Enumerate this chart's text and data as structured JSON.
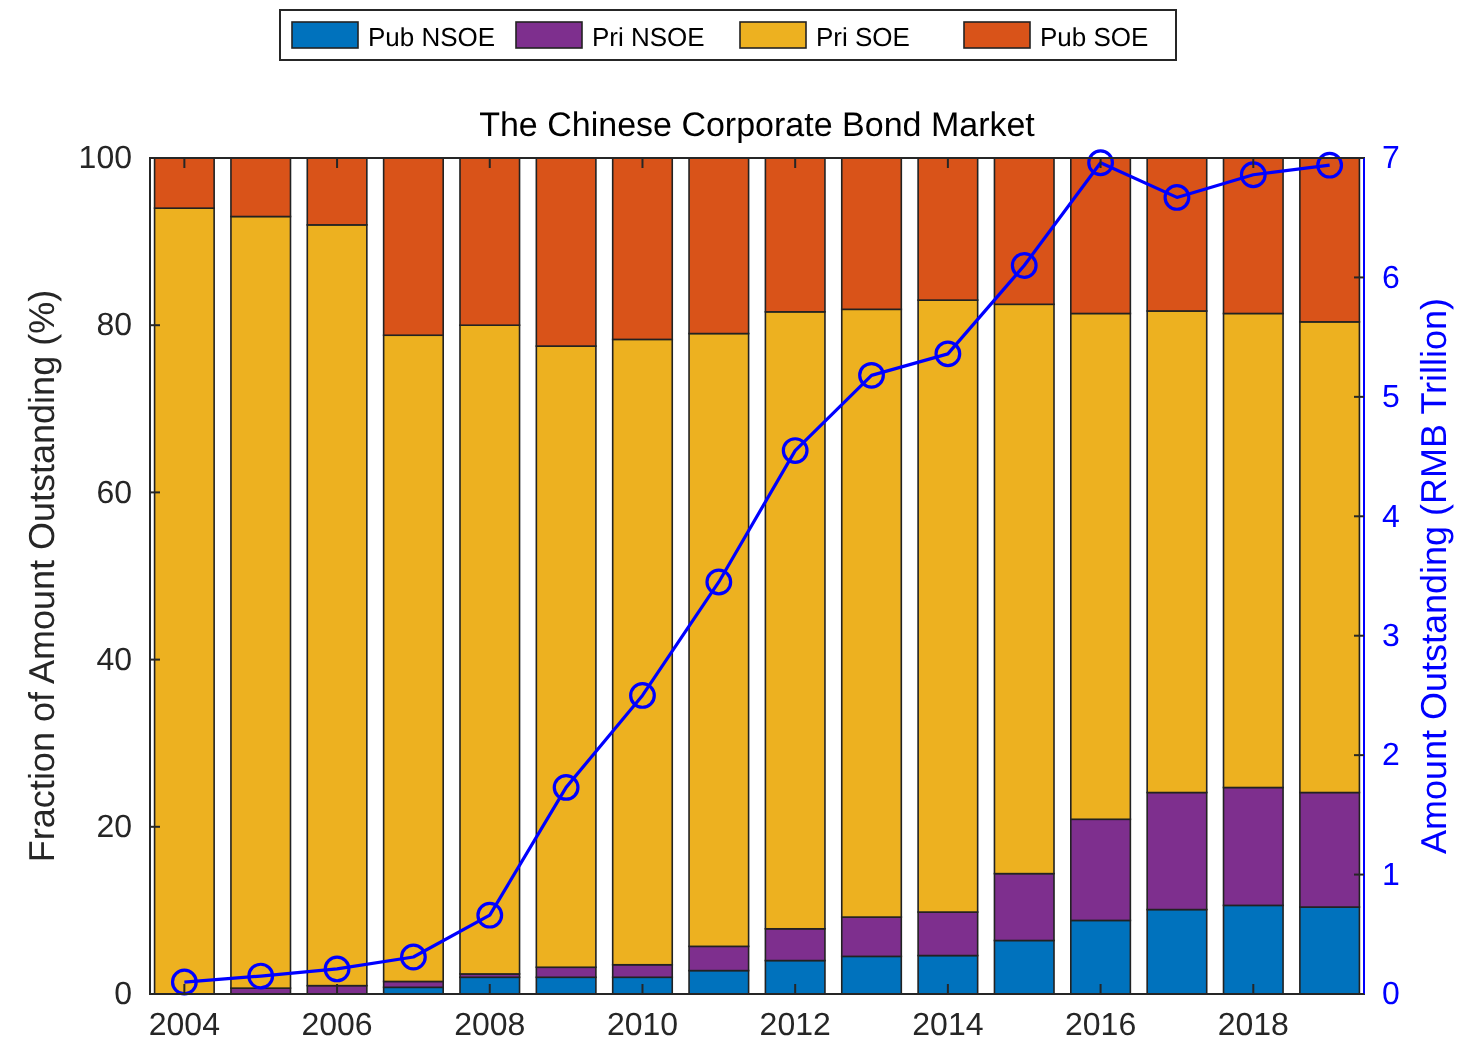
{
  "chart_data": {
    "type": "bar",
    "title": "The Chinese Corporate Bond Market",
    "xlabel": null,
    "ylabel": "Fraction of Amount Outstanding (%)",
    "y2label": "Amount Outstanding (RMB Trillion)",
    "stacked": true,
    "legend": "top",
    "grid": false,
    "x": [
      2004,
      2005,
      2006,
      2007,
      2008,
      2009,
      2010,
      2011,
      2012,
      2013,
      2014,
      2015,
      2016,
      2017,
      2018,
      2019
    ],
    "xlim": [
      2003.55,
      2019.45
    ],
    "xticks": [
      2004,
      2006,
      2008,
      2010,
      2012,
      2014,
      2016,
      2018
    ],
    "ylim": [
      0,
      100
    ],
    "yticks": [
      0,
      20,
      40,
      60,
      80,
      100
    ],
    "y2lim": [
      0,
      7
    ],
    "y2ticks": [
      0,
      1,
      2,
      3,
      4,
      5,
      6,
      7
    ],
    "series": [
      {
        "name": "Pub NSOE",
        "color": "#0072bd",
        "values": [
          0,
          0,
          0,
          0.8,
          2.0,
          2.0,
          2.0,
          2.8,
          4.0,
          4.5,
          4.6,
          6.4,
          8.8,
          10.1,
          10.6,
          10.4
        ]
      },
      {
        "name": "Pri NSOE",
        "color": "#7e2f8e",
        "values": [
          0,
          0.7,
          1.0,
          0.7,
          0.4,
          1.2,
          1.5,
          2.9,
          3.8,
          4.7,
          5.2,
          8.0,
          12.1,
          14.0,
          14.1,
          13.7
        ]
      },
      {
        "name": "Pri SOE",
        "color": "#edb120",
        "values": [
          94,
          92.3,
          91,
          77.3,
          77.6,
          74.3,
          74.8,
          73.3,
          73.8,
          72.7,
          73.2,
          68.1,
          60.5,
          57.6,
          56.7,
          56.3
        ]
      },
      {
        "name": "Pub SOE",
        "color": "#d95319",
        "values": [
          6,
          7,
          8,
          21.2,
          20,
          22.5,
          21.7,
          21,
          18.4,
          18.1,
          17,
          17.5,
          18.6,
          18.3,
          18.6,
          19.6
        ]
      },
      {
        "type": "line",
        "axis": "y2",
        "color": "#0000ff",
        "marker": "circle",
        "line_style": "solid",
        "values": [
          0.1,
          0.15,
          0.21,
          0.31,
          0.66,
          1.73,
          2.5,
          3.45,
          4.55,
          5.18,
          5.36,
          6.1,
          6.96,
          6.67,
          6.86,
          6.94
        ]
      }
    ]
  }
}
